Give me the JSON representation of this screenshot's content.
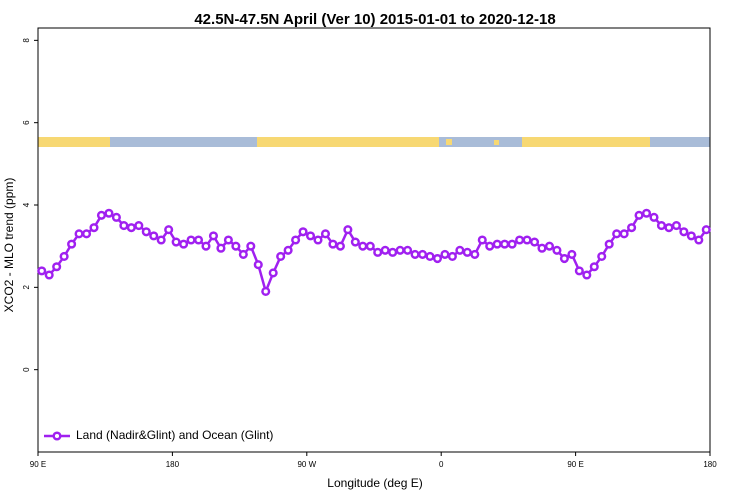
{
  "chart_data": {
    "type": "line",
    "title": "42.5N-47.5N April (Ver 10)   2015-01-01 to 2020-12-18",
    "x_label": "Longitude (deg E)",
    "y_label": "XCO2 - MLO trend (ppm)",
    "x": [
      92.5,
      97.5,
      102.5,
      107.5,
      112.5,
      117.5,
      122.5,
      127.5,
      132.5,
      137.5,
      142.5,
      147.5,
      152.5,
      157.5,
      162.5,
      167.5,
      172.5,
      177.5,
      182.5,
      187.5,
      192.5,
      197.5,
      202.5,
      207.5,
      212.5,
      217.5,
      222.5,
      227.5,
      232.5,
      237.5,
      242.5,
      247.5,
      252.5,
      257.5,
      262.5,
      267.5,
      272.5,
      277.5,
      282.5,
      287.5,
      292.5,
      297.5,
      302.5,
      307.5,
      312.5,
      317.5,
      322.5,
      327.5,
      332.5,
      337.5,
      342.5,
      347.5,
      352.5,
      357.5,
      362.5,
      367.5,
      372.5,
      377.5,
      382.5,
      387.5,
      392.5,
      397.5,
      402.5,
      407.5,
      412.5,
      417.5,
      422.5,
      427.5,
      432.5,
      437.5,
      442.5,
      447.5,
      452.5,
      457.5,
      462.5,
      467.5,
      472.5,
      477.5,
      482.5,
      487.5,
      492.5,
      497.5,
      502.5,
      507.5,
      512.5,
      517.5,
      522.5,
      527.5,
      532.5,
      537.5
    ],
    "series": [
      {
        "name": "Land (Nadir&Glint) and Ocean (Glint)",
        "color": "#a020f0",
        "values": [
          2.4,
          2.3,
          2.5,
          2.75,
          3.05,
          3.3,
          3.3,
          3.45,
          3.75,
          3.8,
          3.7,
          3.5,
          3.45,
          3.5,
          3.35,
          3.25,
          3.15,
          3.4,
          3.1,
          3.05,
          3.15,
          3.15,
          3.0,
          3.25,
          2.95,
          3.15,
          3.0,
          2.8,
          3.0,
          2.55,
          1.9,
          2.35,
          2.75,
          2.9,
          3.15,
          3.35,
          3.25,
          3.15,
          3.3,
          3.05,
          3.0,
          3.4,
          3.1,
          3.0,
          3.0,
          2.85,
          2.9,
          2.85,
          2.9,
          2.9,
          2.8,
          2.8,
          2.75,
          2.7,
          2.8,
          2.75,
          2.9,
          2.85,
          2.8,
          3.15,
          3.0,
          3.05,
          3.05,
          3.05,
          3.15,
          3.15,
          3.1,
          2.95,
          3.0,
          2.9,
          2.7,
          2.8,
          2.4,
          2.3,
          2.5,
          2.75,
          3.05,
          3.3,
          3.3,
          3.45,
          3.75,
          3.8,
          3.7,
          3.5,
          3.45,
          3.5,
          3.35,
          3.25,
          3.15,
          3.4
        ]
      }
    ],
    "xlim": [
      90,
      540
    ],
    "xticks": [
      {
        "value": 90,
        "label": "90 E"
      },
      {
        "value": 180,
        "label": "180"
      },
      {
        "value": 270,
        "label": "90 W"
      },
      {
        "value": 360,
        "label": "0"
      },
      {
        "value": 450,
        "label": "90 E"
      },
      {
        "value": 540,
        "label": "180"
      }
    ],
    "ylim": [
      -2,
      8.3
    ],
    "yticks": [
      0,
      2,
      4,
      6,
      8
    ],
    "legend": "bottom-left"
  }
}
